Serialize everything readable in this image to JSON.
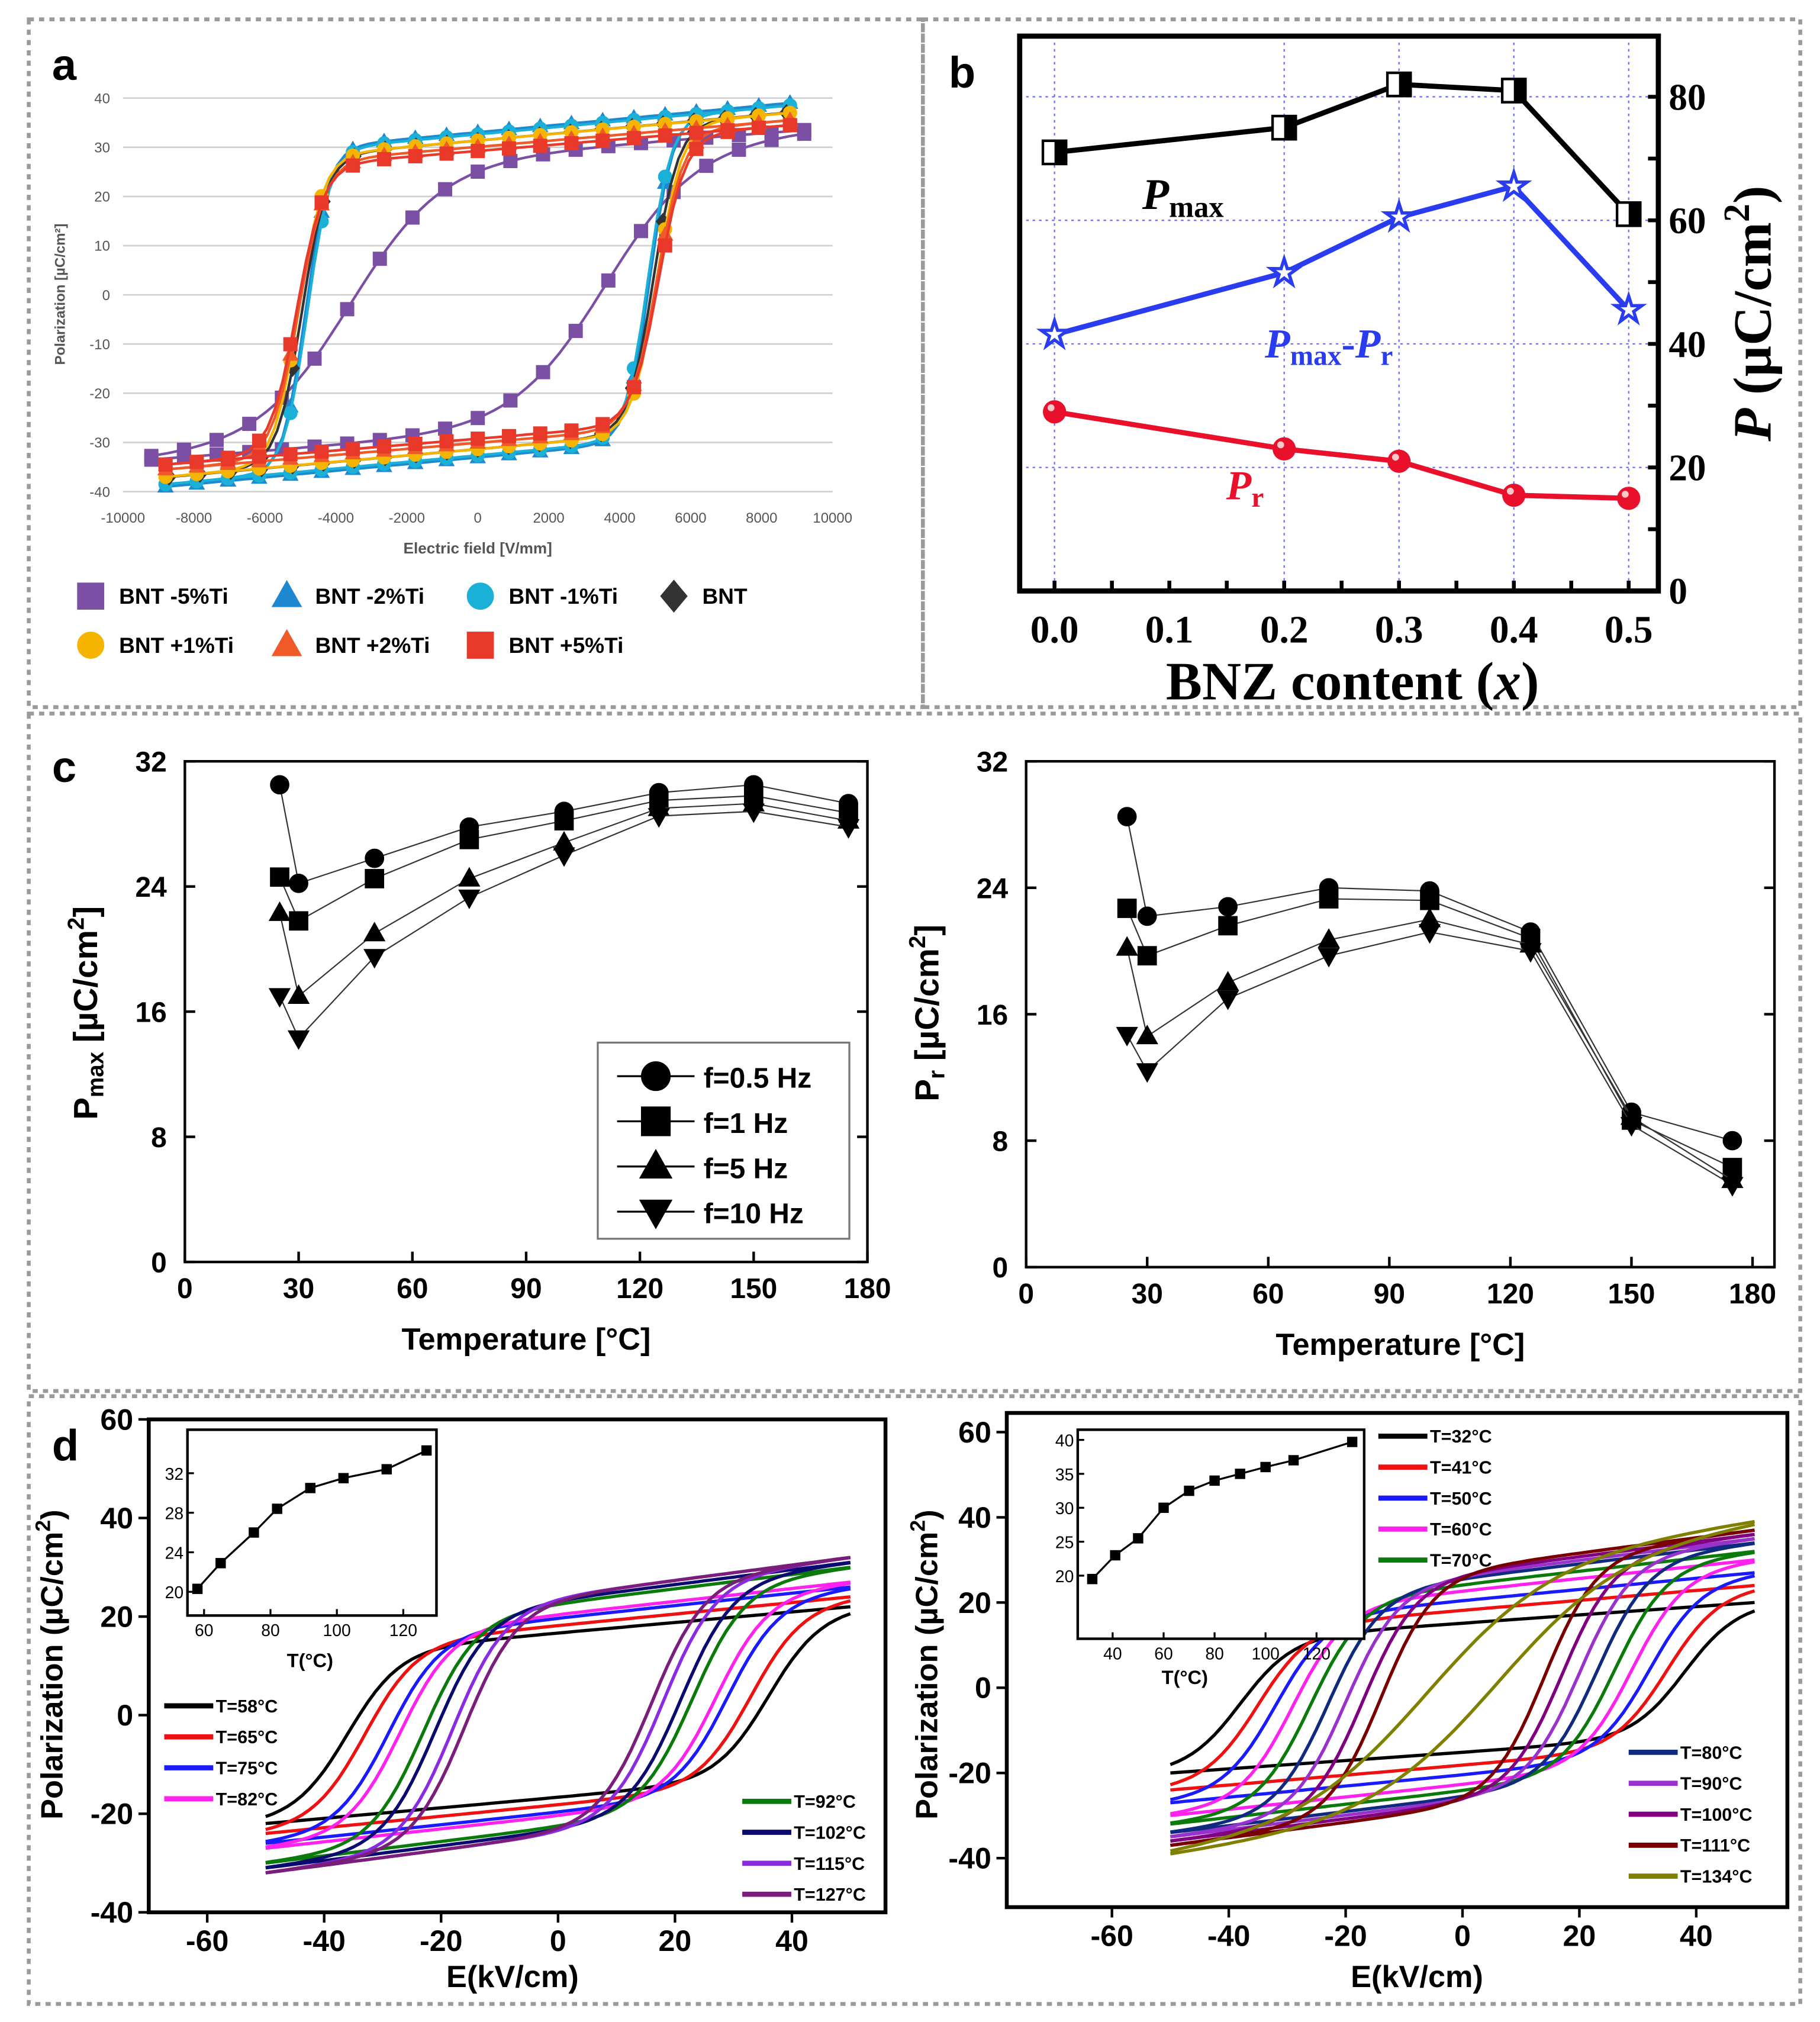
{
  "panel_letters": {
    "a": "a",
    "b": "b",
    "c": "c",
    "d": "d"
  },
  "chart_data": [
    {
      "id": "a",
      "type": "line",
      "xlabel": "Electric field [V/mm]",
      "ylabel": "Polarization [µC/cm²]",
      "xlim": [
        -10000,
        10000
      ],
      "ylim": [
        -40,
        40
      ],
      "xticks": [
        "-10000",
        "-8000",
        "-6000",
        "-4000",
        "-2000",
        "0",
        "2000",
        "4000",
        "6000",
        "8000",
        "10000"
      ],
      "yticks": [
        "-40",
        "-30",
        "-20",
        "-10",
        "0",
        "10",
        "20",
        "30",
        "40"
      ],
      "grid": "horizontal",
      "legend_position": "bottom",
      "series": [
        {
          "name": "BNT -5%Ti",
          "color": "#7b4fa3",
          "marker": "square",
          "Emax": 9200,
          "Ec": 3600,
          "Pmax": 33.5,
          "switch_width": 2600
        },
        {
          "name": "BNT -2%Ti",
          "color": "#1e88d0",
          "marker": "triangle",
          "Emax": 8800,
          "Ec": 4850,
          "Pmax": 39,
          "switch_width": 650
        },
        {
          "name": "BNT -1%Ti",
          "color": "#1ab0d8",
          "marker": "circle",
          "Emax": 8800,
          "Ec": 4800,
          "Pmax": 38.5,
          "switch_width": 650
        },
        {
          "name": "BNT",
          "color": "#333333",
          "marker": "diamond",
          "Emax": 8700,
          "Ec": 4950,
          "Pmax": 37,
          "switch_width": 700
        },
        {
          "name": "BNT +1%Ti",
          "color": "#f5b400",
          "marker": "circle",
          "Emax": 8800,
          "Ec": 5050,
          "Pmax": 37,
          "switch_width": 700
        },
        {
          "name": "BNT +2%Ti",
          "color": "#f05a28",
          "marker": "triangle",
          "Emax": 8800,
          "Ec": 5050,
          "Pmax": 35.5,
          "switch_width": 750
        },
        {
          "name": "BNT +5%Ti",
          "color": "#e8392a",
          "marker": "square",
          "Emax": 8800,
          "Ec": 5100,
          "Pmax": 34.5,
          "switch_width": 750
        }
      ]
    },
    {
      "id": "b",
      "type": "line",
      "xlabel_parts": [
        {
          "t": "BNZ content ("
        },
        {
          "t": "x",
          "i": true
        },
        {
          "t": ")"
        }
      ],
      "ylabel_parts": [
        {
          "t": "P",
          "i": true
        },
        {
          "t": " (µC/cm"
        },
        {
          "t": "2",
          "sup": true
        },
        {
          "t": ")"
        }
      ],
      "xlim": [
        0,
        0.5
      ],
      "ylim": [
        0,
        90
      ],
      "xticks": [
        "0.0",
        "0.1",
        "0.2",
        "0.3",
        "0.4",
        "0.5"
      ],
      "yticks": [
        "0",
        "20",
        "40",
        "60",
        "80"
      ],
      "grid": true,
      "x": [
        0.0,
        0.2,
        0.3,
        0.4,
        0.5
      ],
      "series": [
        {
          "name": "Pmax",
          "label_parts": [
            {
              "t": "P",
              "i": true
            },
            {
              "t": "max",
              "sub": true
            }
          ],
          "color": "#000000",
          "marker": "half-square",
          "values": [
            71,
            75,
            82,
            81,
            61
          ]
        },
        {
          "name": "Pmax-Pr",
          "label_parts": [
            {
              "t": "P",
              "i": true
            },
            {
              "t": "max",
              "sub": true
            },
            {
              "t": "-"
            },
            {
              "t": "P",
              "i": true
            },
            {
              "t": "r",
              "sub": true
            }
          ],
          "color": "#2a3cf0",
          "marker": "star",
          "values": [
            41.5,
            51.5,
            60.5,
            65.5,
            45.5
          ]
        },
        {
          "name": "Pr",
          "label_parts": [
            {
              "t": "P",
              "i": true
            },
            {
              "t": "r",
              "sub": true
            }
          ],
          "color": "#e8102a",
          "marker": "sphere",
          "values": [
            29,
            23,
            21,
            15.5,
            15
          ]
        }
      ]
    },
    {
      "id": "c1",
      "type": "line",
      "xlabel": "Temperature [°C]",
      "ylabel_parts": [
        {
          "t": "P"
        },
        {
          "t": "max",
          "sub": true
        },
        {
          "t": " [µC/cm"
        },
        {
          "t": "2",
          "sup": true
        },
        {
          "t": "]"
        }
      ],
      "xlim": [
        0,
        180
      ],
      "ylim": [
        0,
        32
      ],
      "xticks": [
        "0",
        "30",
        "60",
        "90",
        "120",
        "150",
        "180"
      ],
      "yticks": [
        "0",
        "8",
        "16",
        "24",
        "32"
      ],
      "x": [
        25,
        30,
        50,
        75,
        100,
        125,
        150,
        175
      ],
      "legend_position": "center-right",
      "series": [
        {
          "name": "f=0.5 Hz",
          "marker": "circle",
          "values": [
            30.5,
            24.2,
            25.8,
            27.8,
            28.8,
            30.0,
            30.5,
            29.3
          ]
        },
        {
          "name": "f=1 Hz",
          "marker": "square",
          "values": [
            24.6,
            21.8,
            24.5,
            27.0,
            28.2,
            29.5,
            29.8,
            28.7
          ]
        },
        {
          "name": "f=5 Hz",
          "marker": "triangle-up",
          "values": [
            22.3,
            17.0,
            21.0,
            24.5,
            26.8,
            29.0,
            29.3,
            28.2
          ]
        },
        {
          "name": "f=10 Hz",
          "marker": "triangle-down",
          "values": [
            17.0,
            14.3,
            19.5,
            23.3,
            26.0,
            28.5,
            28.8,
            27.8
          ]
        }
      ]
    },
    {
      "id": "c2",
      "type": "line",
      "xlabel": "Temperature [°C]",
      "ylabel_parts": [
        {
          "t": "P"
        },
        {
          "t": "r",
          "sub": true
        },
        {
          "t": " [µC/cm"
        },
        {
          "t": "2",
          "sup": true
        },
        {
          "t": "]"
        }
      ],
      "xlim": [
        0,
        180
      ],
      "ylim": [
        0,
        32
      ],
      "xticks": [
        "0",
        "30",
        "60",
        "90",
        "120",
        "150",
        "180"
      ],
      "yticks": [
        "0",
        "8",
        "16",
        "24",
        "32"
      ],
      "x": [
        25,
        30,
        50,
        75,
        100,
        125,
        150,
        175
      ],
      "series": [
        {
          "name": "f=0.5 Hz",
          "marker": "circle",
          "values": [
            28.5,
            22.2,
            22.8,
            24.0,
            23.8,
            21.2,
            9.8,
            8.0
          ]
        },
        {
          "name": "f=1 Hz",
          "marker": "square",
          "values": [
            22.7,
            19.7,
            21.6,
            23.3,
            23.2,
            20.8,
            9.3,
            6.3
          ]
        },
        {
          "name": "f=5 Hz",
          "marker": "triangle-up",
          "values": [
            20.2,
            14.6,
            18.0,
            20.7,
            22.0,
            20.4,
            9.5,
            5.5
          ]
        },
        {
          "name": "f=10 Hz",
          "marker": "triangle-down",
          "values": [
            14.7,
            12.4,
            17.0,
            19.7,
            21.2,
            20.0,
            9.0,
            5.2
          ]
        }
      ]
    },
    {
      "id": "d1",
      "type": "line",
      "xlabel": "E(kV/cm)",
      "ylabel_parts": [
        {
          "t": "Polarization (µC/cm"
        },
        {
          "t": "2",
          "sup": true
        },
        {
          "t": ")"
        }
      ],
      "xlim": [
        -70,
        56
      ],
      "ylim": [
        -40,
        60
      ],
      "xticks": [
        "-60",
        "-40",
        "-20",
        "0",
        "20",
        "40"
      ],
      "yticks": [
        "-40",
        "-20",
        "0",
        "20",
        "40",
        "60"
      ],
      "series": [
        {
          "name": "T=58°C",
          "color": "#000000",
          "Emax": 50,
          "Ec": 36,
          "Pmax": 22
        },
        {
          "name": "T=65°C",
          "color": "#ee1111",
          "Emax": 50,
          "Ec": 33,
          "Pmax": 24
        },
        {
          "name": "T=75°C",
          "color": "#1a1aff",
          "Emax": 50,
          "Ec": 29,
          "Pmax": 26
        },
        {
          "name": "T=82°C",
          "color": "#ff22ee",
          "Emax": 50,
          "Ec": 27,
          "Pmax": 27
        },
        {
          "name": "T=92°C",
          "color": "#0a7a0a",
          "Emax": 50,
          "Ec": 23,
          "Pmax": 30
        },
        {
          "name": "T=102°C",
          "color": "#0a0a70",
          "Emax": 50,
          "Ec": 21,
          "Pmax": 31
        },
        {
          "name": "T=115°C",
          "color": "#8a2be2",
          "Emax": 50,
          "Ec": 18,
          "Pmax": 32
        },
        {
          "name": "T=127°C",
          "color": "#7b1e7b",
          "Emax": 50,
          "Ec": 16,
          "Pmax": 32
        }
      ],
      "inset": {
        "type": "line",
        "xlabel": "T(°C)",
        "xlim": [
          55,
          130
        ],
        "ylim": [
          17.6,
          36.4
        ],
        "xticks": [
          "60",
          "80",
          "100",
          "120"
        ],
        "yticks": [
          "20",
          "24",
          "28",
          "32"
        ],
        "x": [
          58,
          65,
          75,
          82,
          92,
          102,
          115,
          127
        ],
        "values": [
          20.3,
          22.9,
          26.0,
          28.4,
          30.5,
          31.5,
          32.4,
          34.3
        ]
      }
    },
    {
      "id": "d2",
      "type": "line",
      "xlabel": "E(kV/cm)",
      "ylabel_parts": [
        {
          "t": "Polarization (µC/cm"
        },
        {
          "t": "2",
          "sup": true
        },
        {
          "t": ")"
        }
      ],
      "xlim": [
        -78,
        55.6
      ],
      "ylim": [
        -51.5,
        64.5
      ],
      "xticks": [
        "-60",
        "-40",
        "-20",
        "0",
        "20",
        "40"
      ],
      "yticks": [
        "-40",
        "-20",
        "0",
        "20",
        "40",
        "60"
      ],
      "series": [
        {
          "name": "T=32°C",
          "color": "#000000",
          "Emax": 50,
          "Ec": 38,
          "Pmax": 20
        },
        {
          "name": "T=41°C",
          "color": "#ee1111",
          "Emax": 50,
          "Ec": 35,
          "Pmax": 24
        },
        {
          "name": "T=50°C",
          "color": "#1a1aff",
          "Emax": 50,
          "Ec": 32,
          "Pmax": 27
        },
        {
          "name": "T=60°C",
          "color": "#ff22ee",
          "Emax": 50,
          "Ec": 29,
          "Pmax": 30
        },
        {
          "name": "T=70°C",
          "color": "#0a7a0a",
          "Emax": 50,
          "Ec": 26,
          "Pmax": 32
        },
        {
          "name": "T=80°C",
          "color": "#102a80",
          "Emax": 50,
          "Ec": 23,
          "Pmax": 34
        },
        {
          "name": "T=90°C",
          "color": "#9932cc",
          "Emax": 50,
          "Ec": 20,
          "Pmax": 35
        },
        {
          "name": "T=100°C",
          "color": "#800080",
          "Emax": 50,
          "Ec": 17,
          "Pmax": 36
        },
        {
          "name": "T=111°C",
          "color": "#7a0000",
          "Emax": 50,
          "Ec": 14,
          "Pmax": 37
        },
        {
          "name": "T=134°C",
          "color": "#808000",
          "Emax": 50,
          "Ec": 6,
          "Pmax": 39
        }
      ],
      "inset": {
        "type": "line",
        "xlabel": "T(°C)",
        "xlim": [
          26.3,
          138.7
        ],
        "ylim": [
          10.7,
          41.5
        ],
        "xticks": [
          "40",
          "60",
          "80",
          "100",
          "120"
        ],
        "yticks": [
          "20",
          "25",
          "30",
          "35",
          "40"
        ],
        "x": [
          32,
          41,
          50,
          60,
          70,
          80,
          90,
          100,
          111,
          134
        ],
        "values": [
          19.5,
          23.0,
          25.5,
          30.0,
          32.5,
          34.0,
          35.0,
          36.0,
          37.0,
          39.7
        ]
      }
    }
  ]
}
